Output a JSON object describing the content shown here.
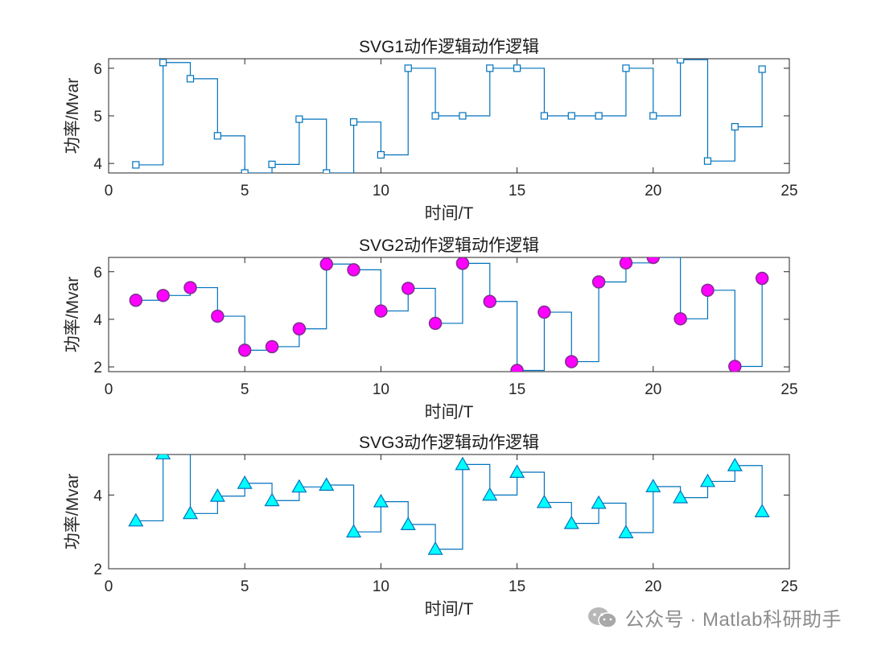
{
  "chart_data": [
    {
      "type": "line",
      "step": "post",
      "title": "SVG1动作逻辑动作逻辑",
      "xlabel": "时间/T",
      "ylabel": "功率/Mvar",
      "xlim": [
        0,
        25
      ],
      "ylim": [
        3.8,
        6.2
      ],
      "xticks": [
        0,
        5,
        10,
        15,
        20,
        25
      ],
      "yticks": [
        4,
        5,
        6
      ],
      "marker": "square",
      "line_color": "#0072BD",
      "marker_face": "none",
      "marker_edge": "#0072BD",
      "x": [
        1,
        2,
        3,
        4,
        5,
        6,
        7,
        8,
        9,
        10,
        11,
        12,
        13,
        14,
        15,
        16,
        17,
        18,
        19,
        20,
        21,
        22,
        23,
        24
      ],
      "values": [
        3.97,
        6.12,
        5.78,
        4.58,
        3.8,
        3.98,
        4.93,
        3.8,
        4.87,
        4.18,
        6.0,
        5.0,
        5.0,
        6.0,
        6.0,
        5.0,
        5.0,
        5.0,
        6.0,
        5.0,
        6.18,
        4.05,
        4.77,
        5.98
      ]
    },
    {
      "type": "line",
      "step": "post",
      "title": "SVG2动作逻辑动作逻辑",
      "xlabel": "时间/T",
      "ylabel": "功率/Mvar",
      "xlim": [
        0,
        25
      ],
      "ylim": [
        1.8,
        6.6
      ],
      "xticks": [
        0,
        5,
        10,
        15,
        20,
        25
      ],
      "yticks": [
        2,
        4,
        6
      ],
      "marker": "circle",
      "line_color": "#0072BD",
      "marker_face": "#FF00FF",
      "marker_edge": "#7E2F8E",
      "x": [
        1,
        2,
        3,
        4,
        5,
        6,
        7,
        8,
        9,
        10,
        11,
        12,
        13,
        14,
        15,
        16,
        17,
        18,
        19,
        20,
        21,
        22,
        23,
        24
      ],
      "values": [
        4.8,
        5.0,
        5.33,
        4.13,
        2.7,
        2.85,
        3.6,
        6.32,
        6.08,
        4.35,
        5.3,
        3.83,
        6.35,
        4.75,
        1.85,
        4.3,
        2.22,
        5.57,
        6.37,
        6.6,
        4.02,
        5.22,
        2.02,
        5.72
      ]
    },
    {
      "type": "line",
      "step": "post",
      "title": "SVG3动作逻辑动作逻辑",
      "xlabel": "时间/T",
      "ylabel": "功率/Mvar",
      "xlim": [
        0,
        25
      ],
      "ylim": [
        2,
        5.1
      ],
      "xticks": [
        0,
        5,
        10,
        15,
        20,
        25
      ],
      "yticks": [
        2,
        4
      ],
      "marker": "triangle",
      "line_color": "#0072BD",
      "marker_face": "#00FFFF",
      "marker_edge": "#0072BD",
      "x": [
        1,
        2,
        3,
        4,
        5,
        6,
        7,
        8,
        9,
        10,
        11,
        12,
        13,
        14,
        15,
        16,
        17,
        18,
        19,
        20,
        21,
        22,
        23,
        24
      ],
      "values": [
        3.3,
        5.12,
        3.5,
        3.97,
        4.32,
        3.85,
        4.22,
        4.27,
        3.0,
        3.82,
        3.2,
        2.53,
        4.83,
        4.0,
        4.62,
        3.8,
        3.23,
        3.78,
        2.98,
        4.23,
        3.93,
        4.37,
        4.8,
        3.55
      ]
    }
  ],
  "watermark": {
    "text": "公众号 · Matlab科研助手",
    "icon": "wechat-icon"
  }
}
